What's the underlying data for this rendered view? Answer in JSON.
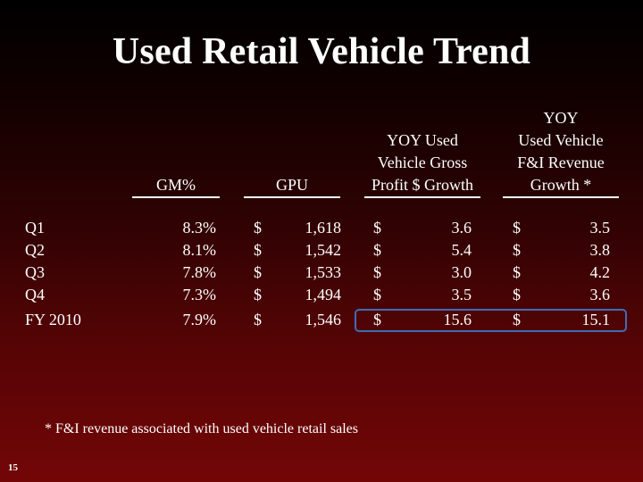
{
  "title": "Used Retail Vehicle Trend",
  "columns": {
    "gm": {
      "lines": [
        "GM%"
      ]
    },
    "gpu": {
      "lines": [
        "GPU"
      ]
    },
    "yoy_gross": {
      "lines": [
        "YOY Used",
        "Vehicle Gross",
        "Profit $ Growth"
      ]
    },
    "yoy_fi": {
      "lines": [
        "YOY",
        "Used Vehicle",
        "F&I Revenue",
        "Growth *"
      ]
    }
  },
  "currency_symbol": "$",
  "rows": [
    {
      "label": "Q1",
      "gm": "8.3%",
      "gpu": "1,618",
      "yoy_gross": "3.6",
      "yoy_fi": "3.5"
    },
    {
      "label": "Q2",
      "gm": "8.1%",
      "gpu": "1,542",
      "yoy_gross": "5.4",
      "yoy_fi": "3.8"
    },
    {
      "label": "Q3",
      "gm": "7.8%",
      "gpu": "1,533",
      "yoy_gross": "3.0",
      "yoy_fi": "4.2"
    },
    {
      "label": "Q4",
      "gm": "7.3%",
      "gpu": "1,494",
      "yoy_gross": "3.5",
      "yoy_fi": "3.6"
    },
    {
      "label": "FY 2010",
      "gm": "7.9%",
      "gpu": "1,546",
      "yoy_gross": "15.6",
      "yoy_fi": "15.1"
    }
  ],
  "highlight_color": "#3f6db4",
  "footnote": "*  F&I revenue associated with used vehicle retail sales",
  "page_number": "15"
}
